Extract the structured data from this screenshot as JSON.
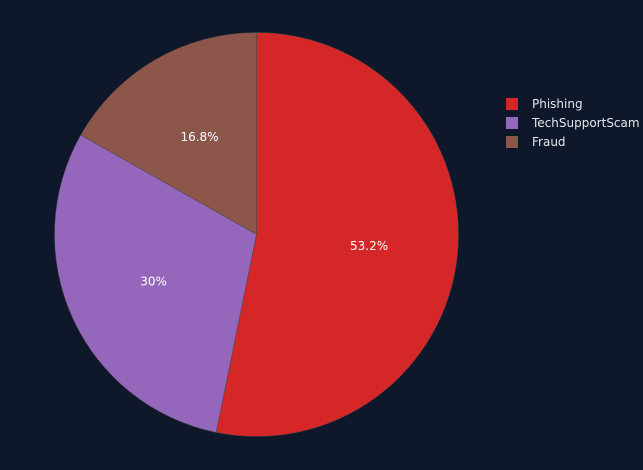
{
  "chart_data": {
    "type": "pie",
    "categories": [
      "Phishing",
      "TechSupportScam",
      "Fraud"
    ],
    "values": [
      53.2,
      30,
      16.8
    ],
    "labels": [
      "53.2%",
      "30%",
      "16.8%"
    ],
    "colors": [
      "#d62728",
      "#9467bd",
      "#8c564b"
    ],
    "background": "#0f172a",
    "start_angle_deg": 90,
    "direction": "clockwise",
    "legend_placement": "top-right"
  }
}
